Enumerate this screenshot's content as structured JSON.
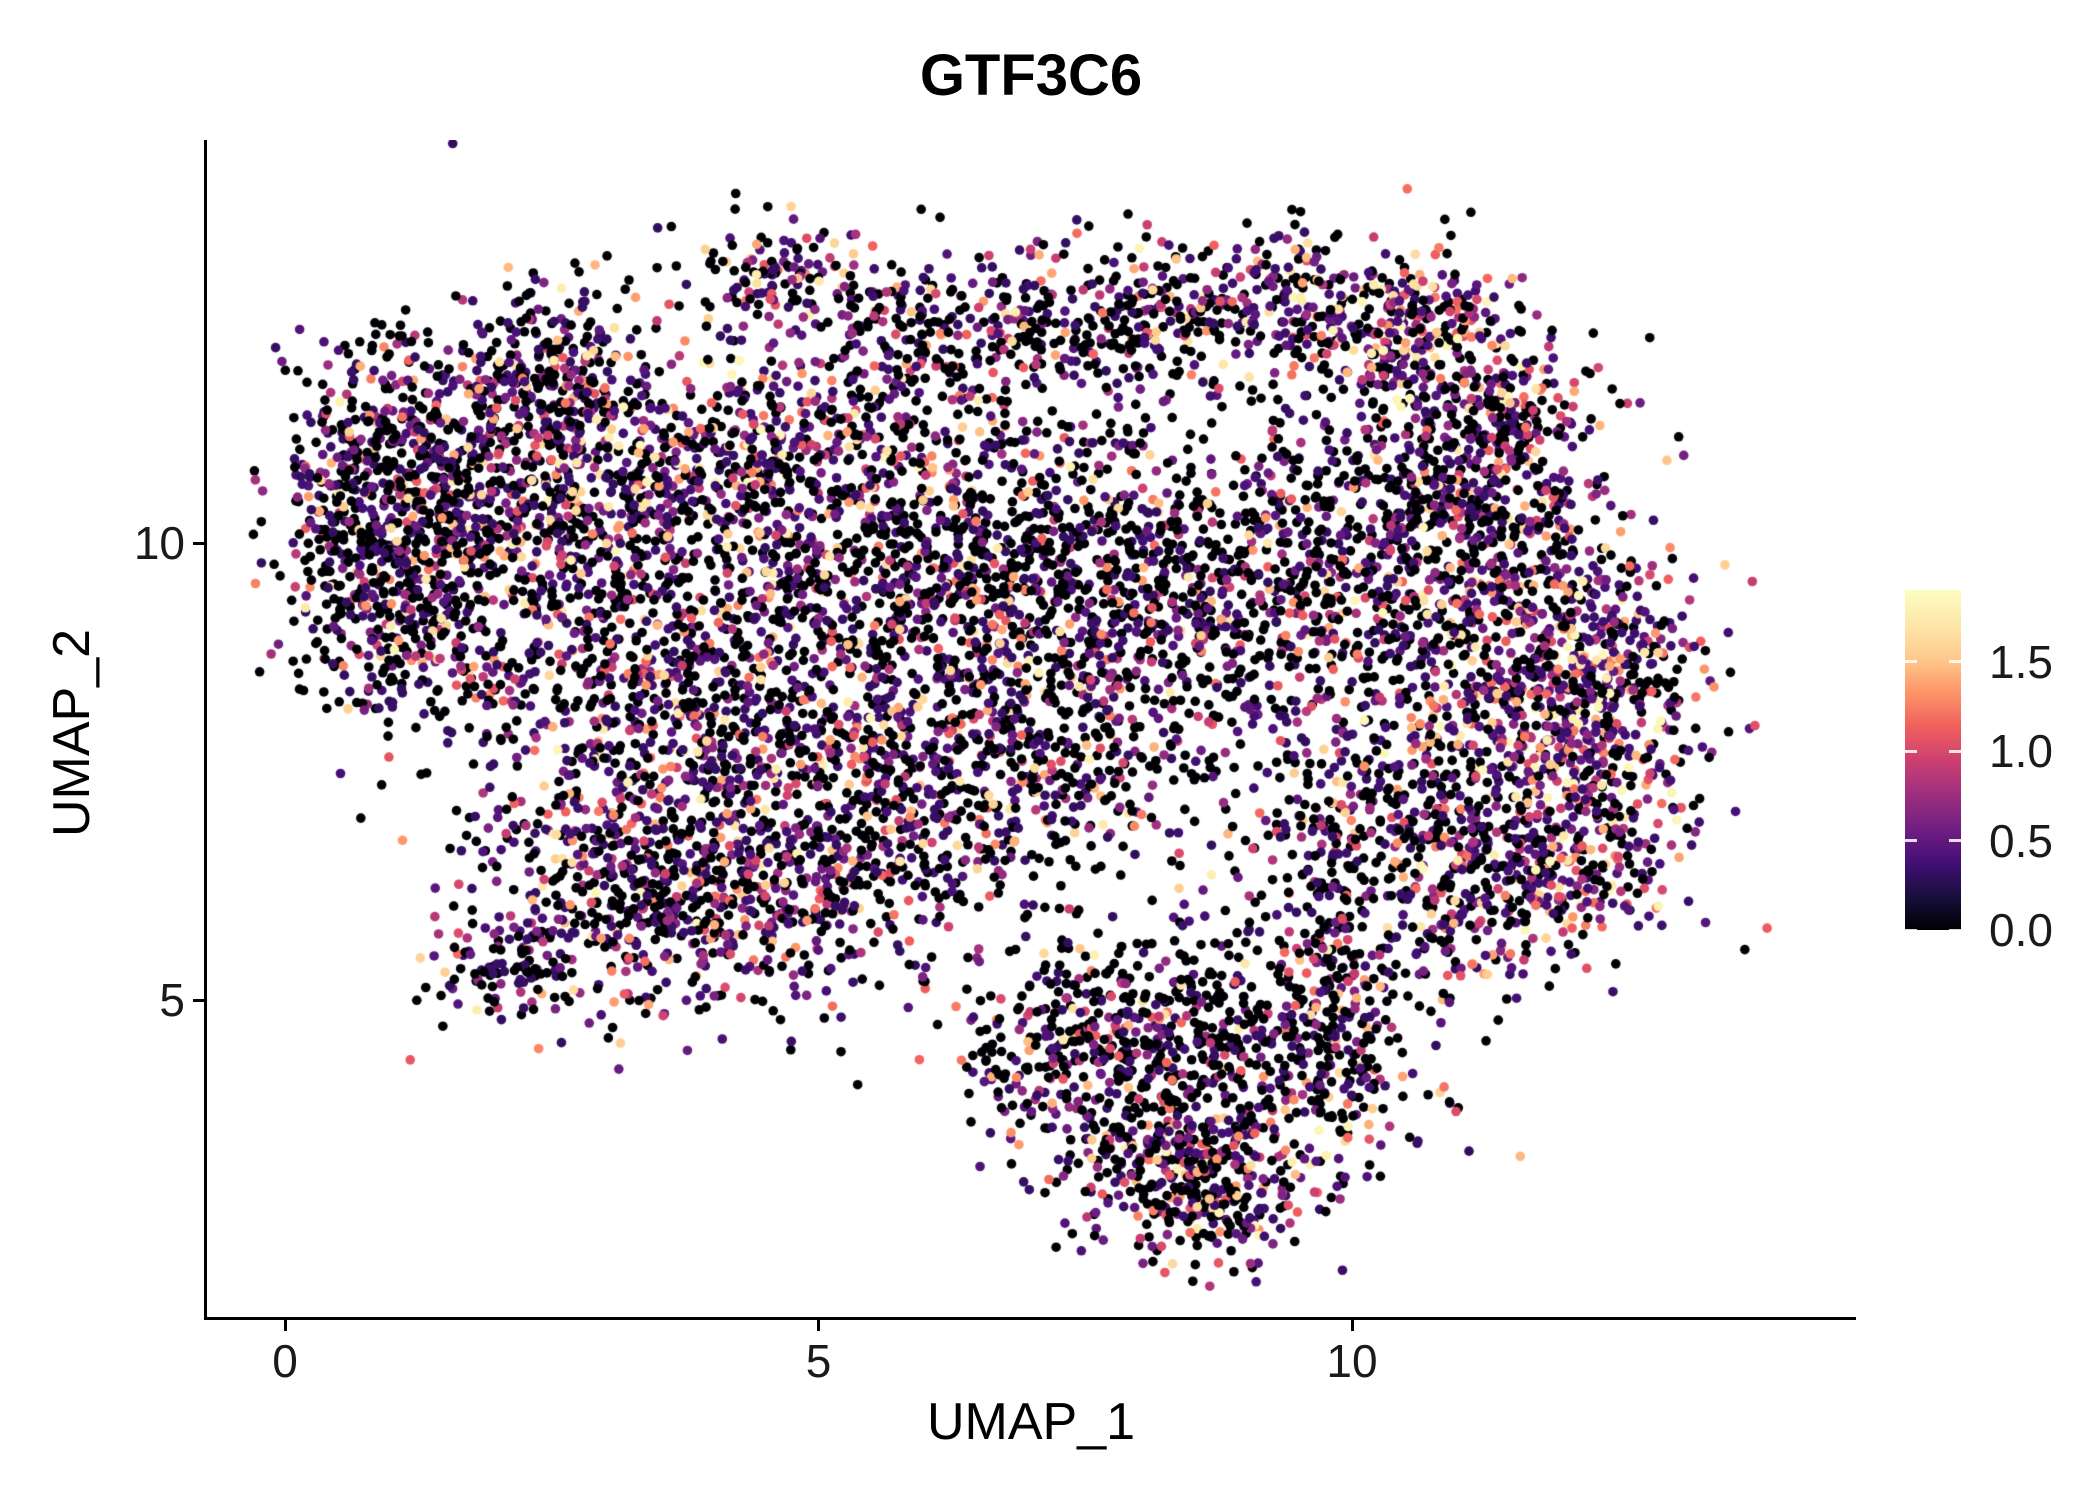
{
  "background_color": "#ffffff",
  "text_color": "#000000",
  "chart_data": {
    "type": "scatter",
    "title": "GTF3C6",
    "subtitle": "",
    "xlabel": "UMAP_1",
    "ylabel": "UMAP_2",
    "x_ticks": [
      0,
      5,
      10
    ],
    "y_ticks": [
      5,
      10
    ],
    "xlim": [
      -0.7,
      14.7
    ],
    "ylim": [
      1.6,
      13.9
    ],
    "grid": false,
    "legend": {
      "type": "colorbar",
      "position": "right",
      "ticks": [
        0.0,
        0.5,
        1.0,
        1.5
      ],
      "tick_labels": [
        "0.0",
        "0.5",
        "1.0",
        "1.5"
      ],
      "domain": [
        0,
        1.9
      ],
      "colormap": "magma",
      "color_stops": [
        {
          "t": 0.0,
          "color": "#000004"
        },
        {
          "t": 0.1,
          "color": "#180f3d"
        },
        {
          "t": 0.2,
          "color": "#440f76"
        },
        {
          "t": 0.3,
          "color": "#721f81"
        },
        {
          "t": 0.4,
          "color": "#9e2f7f"
        },
        {
          "t": 0.5,
          "color": "#cd4071"
        },
        {
          "t": 0.6,
          "color": "#f1605d"
        },
        {
          "t": 0.7,
          "color": "#fd9668"
        },
        {
          "t": 0.8,
          "color": "#feca8d"
        },
        {
          "t": 0.9,
          "color": "#fde7a9"
        },
        {
          "t": 1.0,
          "color": "#fcfdbf"
        }
      ]
    },
    "point_radius_px": 4.8,
    "seed": 42,
    "expression_model": {
      "base": 0.3,
      "range": 1.5,
      "power": 2.6
    },
    "cluster_fields": [
      "x",
      "y",
      "sx",
      "sy",
      "n",
      "zero_frac",
      "expr_boost"
    ],
    "clusters": [
      [
        0.75,
        10.3,
        0.45,
        0.95,
        480,
        0.5,
        1.0
      ],
      [
        1.8,
        10.9,
        0.7,
        0.75,
        420,
        0.45,
        1.0
      ],
      [
        2.6,
        11.9,
        0.45,
        0.45,
        230,
        0.42,
        1.0
      ],
      [
        1.6,
        9.2,
        0.6,
        0.7,
        300,
        0.5,
        1.0
      ],
      [
        2.9,
        9.9,
        0.7,
        0.8,
        360,
        0.45,
        1.0
      ],
      [
        4.6,
        12.9,
        0.45,
        0.3,
        140,
        0.45,
        1.0
      ],
      [
        4.4,
        10.9,
        0.95,
        0.55,
        520,
        0.35,
        1.1
      ],
      [
        5.9,
        12.1,
        0.55,
        0.5,
        170,
        0.5,
        1.0
      ],
      [
        7.4,
        12.4,
        0.9,
        0.45,
        280,
        0.5,
        1.0
      ],
      [
        9.3,
        12.6,
        0.8,
        0.4,
        300,
        0.45,
        1.05
      ],
      [
        10.6,
        12.3,
        0.5,
        0.45,
        230,
        0.35,
        1.25
      ],
      [
        11.3,
        11.4,
        0.5,
        0.6,
        230,
        0.45,
        1.0
      ],
      [
        3.9,
        8.1,
        1.0,
        0.95,
        680,
        0.4,
        1.05
      ],
      [
        5.3,
        9.4,
        0.8,
        0.8,
        360,
        0.5,
        1.0
      ],
      [
        6.6,
        9.9,
        0.9,
        0.85,
        380,
        0.55,
        1.0
      ],
      [
        7.9,
        9.0,
        0.9,
        0.9,
        430,
        0.5,
        1.0
      ],
      [
        6.9,
        7.6,
        0.8,
        0.7,
        330,
        0.5,
        1.0
      ],
      [
        5.6,
        7.0,
        0.7,
        0.7,
        310,
        0.45,
        1.0
      ],
      [
        3.2,
        6.4,
        0.8,
        0.7,
        460,
        0.4,
        1.05
      ],
      [
        4.4,
        5.9,
        0.6,
        0.5,
        220,
        0.45,
        1.0
      ],
      [
        2.2,
        5.3,
        0.45,
        0.3,
        110,
        0.5,
        1.0
      ],
      [
        9.6,
        9.6,
        0.9,
        0.8,
        420,
        0.5,
        1.0
      ],
      [
        11.4,
        9.0,
        0.8,
        1.05,
        720,
        0.35,
        1.1
      ],
      [
        12.3,
        8.0,
        0.5,
        0.95,
        470,
        0.3,
        1.12
      ],
      [
        10.4,
        7.0,
        0.8,
        0.6,
        360,
        0.45,
        1.0
      ],
      [
        11.6,
        6.3,
        0.6,
        0.5,
        260,
        0.4,
        1.1
      ],
      [
        10.9,
        10.6,
        0.7,
        0.6,
        260,
        0.55,
        1.0
      ],
      [
        8.6,
        4.9,
        1.1,
        0.5,
        270,
        0.55,
        1.0
      ],
      [
        8.2,
        3.9,
        0.7,
        0.6,
        310,
        0.5,
        1.0
      ],
      [
        8.6,
        3.0,
        0.6,
        0.45,
        330,
        0.4,
        1.08
      ],
      [
        9.7,
        4.2,
        0.6,
        0.5,
        210,
        0.5,
        1.0
      ],
      [
        7.2,
        4.5,
        0.4,
        0.5,
        130,
        0.55,
        1.0
      ],
      [
        6.2,
        8.6,
        1.6,
        1.5,
        260,
        0.6,
        1.0
      ],
      [
        8.6,
        10.4,
        1.2,
        0.9,
        200,
        0.55,
        1.0
      ],
      [
        9.9,
        5.6,
        0.8,
        0.4,
        160,
        0.5,
        1.0
      ]
    ]
  }
}
